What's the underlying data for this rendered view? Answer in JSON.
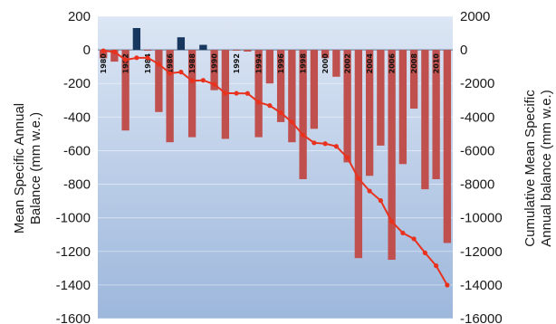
{
  "chart_data": {
    "type": "bar+line",
    "title": "",
    "ylabel_left": [
      "Mean Specific Annual",
      "Balance  (mm w.e.)"
    ],
    "ylabel_right": [
      "Cumulative Mean Specific",
      "Annual balance  (mm w.e.)"
    ],
    "ylim_left": [
      -1600,
      200
    ],
    "ylim_right": [
      -16000,
      2000
    ],
    "yticks_left": [
      "200",
      "0",
      "-200",
      "-400",
      "-600",
      "-800",
      "-1000",
      "-1200",
      "-1400",
      "-1600"
    ],
    "yticks_right": [
      "2000",
      "0",
      "-2000",
      "-4000",
      "-6000",
      "-8000",
      "-10000",
      "-12000",
      "-14000",
      "-16000"
    ],
    "year_labels": [
      "1980",
      "1982",
      "1984",
      "1986",
      "1988",
      "1990",
      "1992",
      "1994",
      "1996",
      "1998",
      "2000",
      "2002",
      "2004",
      "2006",
      "2008",
      "2010"
    ],
    "x": [
      1980,
      1981,
      1982,
      1983,
      1984,
      1985,
      1986,
      1987,
      1988,
      1989,
      1990,
      1991,
      1992,
      1993,
      1994,
      1995,
      1996,
      1997,
      1998,
      1999,
      2000,
      2001,
      2002,
      2003,
      2004,
      2005,
      2006,
      2007,
      2008,
      2009,
      2010,
      2011
    ],
    "series": [
      {
        "values": [
          -50,
          -70,
          -480,
          130,
          -5,
          -370,
          -550,
          75,
          -520,
          30,
          -240,
          -530,
          -5,
          -10,
          -520,
          -200,
          -430,
          -550,
          -770,
          -470,
          -50,
          -160,
          -670,
          -1240,
          -750,
          -570,
          -1250,
          -680,
          -350,
          -830,
          -770,
          -1150
        ]
      },
      {
        "values": [
          -50,
          -120,
          -600,
          -470,
          -475,
          -845,
          -1395,
          -1320,
          -1840,
          -1810,
          -2050,
          -2580,
          -2585,
          -2595,
          -3115,
          -3315,
          -3745,
          -4295,
          -5065,
          -5535,
          -5585,
          -5745,
          -6415,
          -7655,
          -8405,
          -8975,
          -10225,
          -10905,
          -11255,
          -12085,
          -12855,
          -14005
        ]
      }
    ],
    "colors": {
      "negative_bar": "#c0504d",
      "positive_bar": "#17375e",
      "line": "#e8321e",
      "plot_top": "#dce6f4",
      "plot_bottom": "#9db7dc"
    },
    "grid": true,
    "legend": "none"
  }
}
